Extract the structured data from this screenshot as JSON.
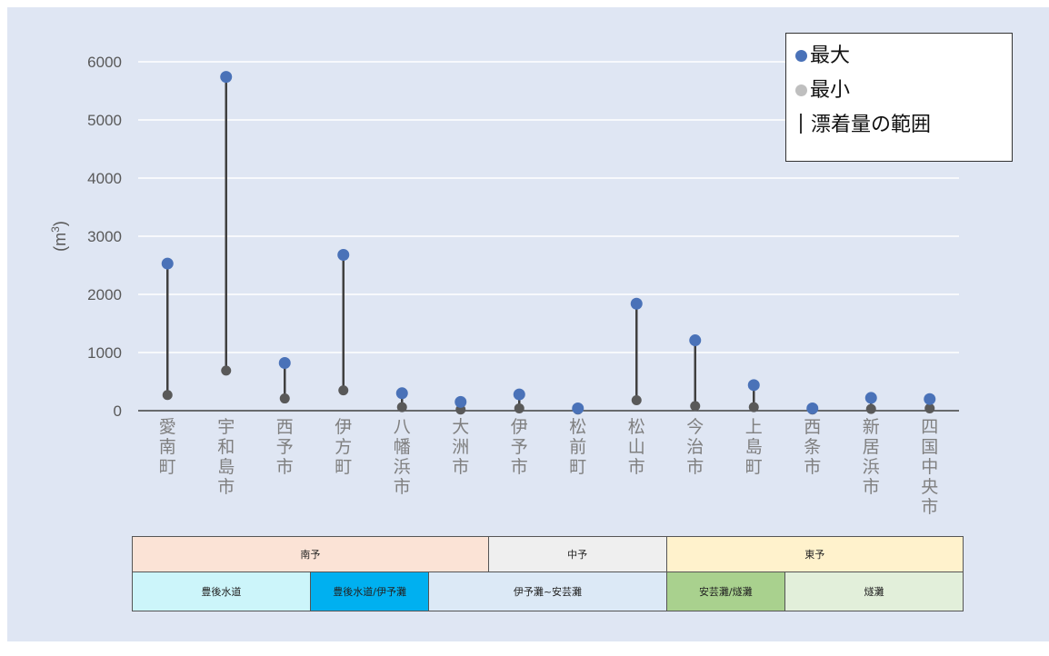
{
  "chart_data": {
    "type": "scatter",
    "ylabel": "(m3)",
    "ylim": [
      0,
      6000
    ],
    "yticks": [
      "0",
      "1000",
      "2000",
      "3000",
      "4000",
      "5000",
      "6000"
    ],
    "categories": [
      "愛南町",
      "宇和島市",
      "西予市",
      "伊方町",
      "八幡浜市",
      "大洲市",
      "伊予市",
      "松前町",
      "松山市",
      "今治市",
      "上島町",
      "西条市",
      "新居浜市",
      "四国中央市"
    ],
    "series": [
      {
        "name": "最大",
        "color": "#4a72b8",
        "values": [
          2530,
          5740,
          820,
          2680,
          300,
          150,
          280,
          40,
          1840,
          1210,
          440,
          40,
          220,
          200
        ]
      },
      {
        "name": "最小",
        "color": "#595959",
        "values": [
          270,
          690,
          210,
          350,
          60,
          20,
          40,
          20,
          180,
          80,
          60,
          20,
          30,
          40
        ]
      }
    ],
    "range_label": "漂着量の範囲",
    "grid": true,
    "legend_position": "top-right"
  },
  "legend": {
    "max_label": "●最大",
    "min_label": "●最小",
    "range_label": "漂着量の範囲"
  },
  "regions": {
    "row1": [
      {
        "label": "南予",
        "span": 6,
        "color": "#fbe3d6"
      },
      {
        "label": "中予",
        "span": 3,
        "color": "#efefef"
      },
      {
        "label": "東予",
        "span": 5,
        "color": "#fff2cc"
      }
    ],
    "row2": [
      {
        "label": "豊後水道",
        "span": 3,
        "color": "#ccf5fa"
      },
      {
        "label": "豊後水道/伊予灘",
        "span": 2,
        "color": "#00b0f0"
      },
      {
        "label": "伊予灘~安芸灘",
        "span": 4,
        "color": "#dce9f6"
      },
      {
        "label": "安芸灘/燧灘",
        "span": 2,
        "color": "#a9d18e"
      },
      {
        "label": "燧灘",
        "span": 3,
        "color": "#e2efda"
      }
    ]
  }
}
